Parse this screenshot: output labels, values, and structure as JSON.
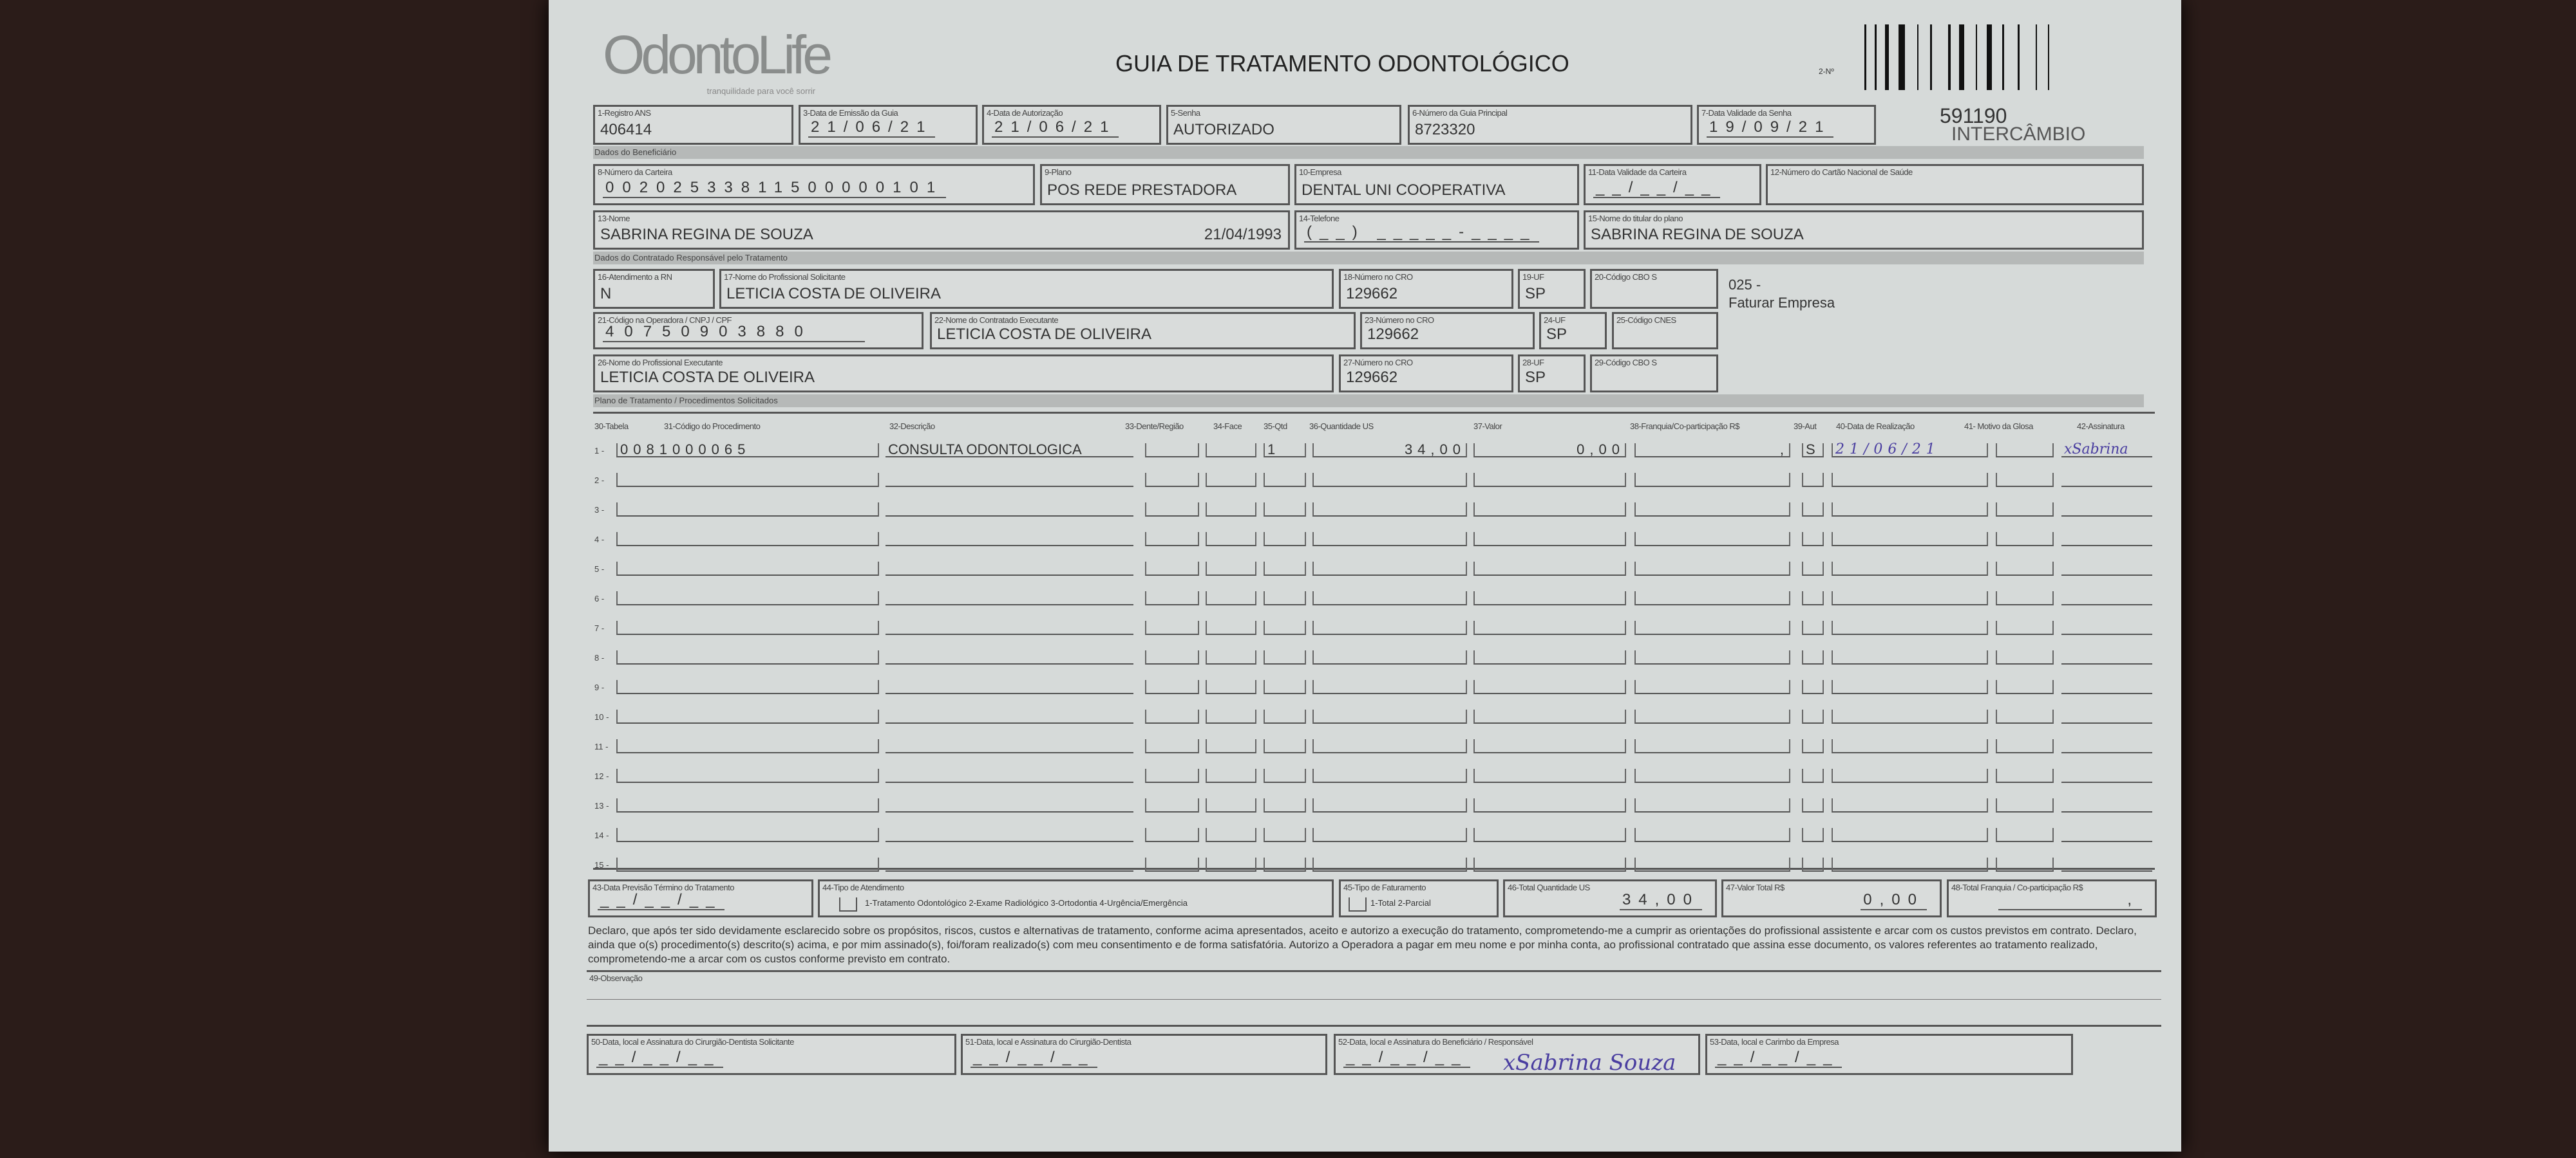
{
  "header": {
    "logo": "OdontoLife",
    "logo_tagline": "tranquilidade para você sorrir",
    "title": "GUIA DE TRATAMENTO ODONTOLÓGICO",
    "numero_label": "2-Nº",
    "guia_number": "591190",
    "guia_type": "INTERCÂMBIO"
  },
  "row1": {
    "registro_ans": {
      "label": "1-Registro ANS",
      "value": "406414"
    },
    "data_emissao": {
      "label": "3-Data de Emissão da Guia",
      "value": "21/06/21"
    },
    "data_autorizacao": {
      "label": "4-Data de Autorização",
      "value": "21/06/21"
    },
    "senha": {
      "label": "5-Senha",
      "value": "AUTORIZADO"
    },
    "guia_principal": {
      "label": "6-Número da Guia Principal",
      "value": "8723320"
    },
    "validade_senha": {
      "label": "7-Data Validade da Senha",
      "value": "19/09/21"
    }
  },
  "sections": {
    "beneficiario": "Dados do Beneficiário",
    "contratado": "Dados do Contratado Responsável pelo Tratamento",
    "plano": "Plano de Tratamento / Procedimentos Solicitados"
  },
  "beneficiario": {
    "carteira": {
      "label": "8-Número da Carteira",
      "value": "00202533811500000101"
    },
    "plano": {
      "label": "9-Plano",
      "value": "POS REDE PRESTADORA"
    },
    "empresa": {
      "label": "10-Empresa",
      "value": "DENTAL UNI  COOPERATIVA"
    },
    "validade_carteira": {
      "label": "11-Data Validade da Carteira",
      "value": "__/__/__"
    },
    "cartao_saude": {
      "label": "12-Número do Cartão Nacional de Saúde",
      "value": ""
    },
    "nome": {
      "label": "13-Nome",
      "value": "SABRINA REGINA DE SOUZA",
      "birth": "21/04/1993"
    },
    "telefone": {
      "label": "14-Telefone",
      "value": "(__) _____-____"
    },
    "titular": {
      "label": "15-Nome do titular do plano",
      "value": "SABRINA REGINA DE SOUZA"
    }
  },
  "contratado": {
    "rn": {
      "label": "16-Atendimento a RN",
      "value": "N"
    },
    "solicitante": {
      "label": "17-Nome do Profissional Solicitante",
      "value": "LETICIA COSTA DE OLIVEIRA"
    },
    "cro18": {
      "label": "18-Número no CRO",
      "value": "129662"
    },
    "uf19": {
      "label": "19-UF",
      "value": "SP"
    },
    "cbo20": {
      "label": "20-Código CBO S",
      "value": ""
    },
    "note1": "025 -",
    "note2": "Faturar Empresa",
    "codigo_operadora": {
      "label": "21-Código na Operadora / CNPJ / CPF",
      "value": "40750903880"
    },
    "executante_contratado": {
      "label": "22-Nome do Contratado Executante",
      "value": "LETICIA COSTA DE OLIVEIRA"
    },
    "cro23": {
      "label": "23-Número no CRO",
      "value": "129662"
    },
    "uf24": {
      "label": "24-UF",
      "value": "SP"
    },
    "cnes": {
      "label": "25-Código CNES",
      "value": ""
    },
    "executante": {
      "label": "26-Nome do Profissional Executante",
      "value": "LETICIA COSTA DE OLIVEIRA"
    },
    "cro27": {
      "label": "27-Número no CRO",
      "value": "129662"
    },
    "uf28": {
      "label": "28-UF",
      "value": "SP"
    },
    "cbo29": {
      "label": "29-Código CBO S",
      "value": ""
    }
  },
  "table": {
    "headers": [
      "30-Tabela",
      "31-Código do Procedimento",
      "32-Descrição",
      "33-Dente/Região",
      "34-Face",
      "35-Qtd",
      "36-Quantidade US",
      "37-Valor",
      "38-Franquia/Co-participação R$",
      "39-Aut",
      "40-Data de Realização",
      "41- Motivo da Glosa",
      "42-Assinatura"
    ],
    "rows": [
      {
        "n": "1 -",
        "codigo": "0081000065",
        "descricao": "CONSULTA ODONTOLOGICA",
        "dente": "",
        "face": "",
        "qtd": "1",
        "us": "34,00",
        "valor": "0,00",
        "franquia": ",",
        "aut": "S",
        "data": "21/06/21",
        "motivo": "",
        "assinatura": "xSabrina"
      },
      {
        "n": "2 -"
      },
      {
        "n": "3 -"
      },
      {
        "n": "4 -"
      },
      {
        "n": "5 -"
      },
      {
        "n": "6 -"
      },
      {
        "n": "7 -"
      },
      {
        "n": "8 -"
      },
      {
        "n": "9 -"
      },
      {
        "n": "10 -"
      },
      {
        "n": "11 -"
      },
      {
        "n": "12 -"
      },
      {
        "n": "13 -"
      },
      {
        "n": "14 -"
      },
      {
        "n": "15 -"
      }
    ]
  },
  "totals": {
    "previsao": {
      "label": "43-Data Previsão Término do Tratamento",
      "value": "__/__/__"
    },
    "tipo_atendimento": {
      "label": "44-Tipo de Atendimento",
      "value": "1-Tratamento Odontológico  2-Exame Radiológico  3-Ortodontia  4-Urgência/Emergência"
    },
    "tipo_faturamento": {
      "label": "45-Tipo de Faturamento",
      "value": "1-Total  2-Parcial"
    },
    "total_us": {
      "label": "46-Total Quantidade US",
      "value": "34,00"
    },
    "valor_total": {
      "label": "47-Valor Total R$",
      "value": "0,00"
    },
    "total_franquia": {
      "label": "48-Total Franquia / Co-participação R$",
      "value": ","
    }
  },
  "declaration": "Declaro, que após ter sido devidamente esclarecido sobre os propósitos, riscos, custos e alternativas de tratamento, conforme acima apresentados, aceito e autorizo a execução do tratamento, comprometendo-me a cumprir as orientações do profissional assistente e arcar com os custos previstos em contrato. Declaro, ainda que o(s) procedimento(s) descrito(s) acima, e por mim assinado(s), foi/foram realizado(s) com meu consentimento e de forma satisfatória. Autorizo a Operadora a pagar em meu nome e por minha conta, ao profissional contratado que assina esse documento, os valores referentes ao tratamento realizado, comprometendo-me a arcar com os custos conforme previsto em contrato.",
  "observacao": {
    "label": "49-Observação",
    "value": ""
  },
  "signatures": [
    {
      "label": "50-Data, local e Assinatura do Cirurgião-Dentista Solicitante",
      "date": "__/__/__",
      "sign": ""
    },
    {
      "label": "51-Data, local e Assinatura do Cirurgião-Dentista",
      "date": "__/__/__",
      "sign": ""
    },
    {
      "label": "52-Data, local e Assinatura do Beneficiário / Responsável",
      "date": "__/__/__",
      "sign": "xSabrina Souza"
    },
    {
      "label": "53-Data, local e Carimbo da Empresa",
      "date": "__/__/__",
      "sign": ""
    }
  ],
  "colors": {
    "background": "#2b1c19",
    "paper": "#d6dad9",
    "ink": "#333333",
    "pen": "#4a3ea0"
  }
}
